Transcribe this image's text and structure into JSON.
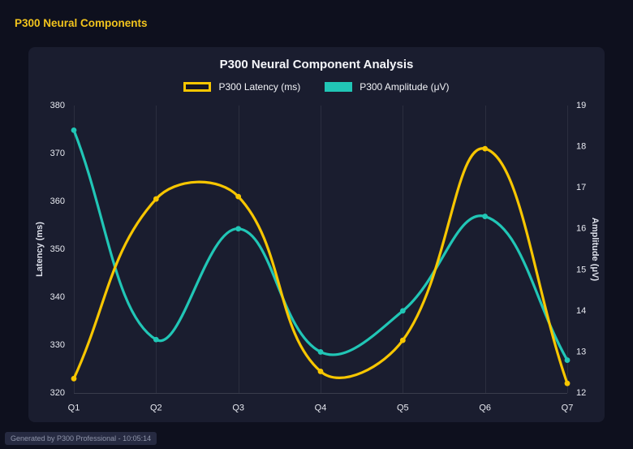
{
  "page": {
    "header_title": "P300 Neural Components",
    "footer": "Generated by P300 Professional - 10:05:14"
  },
  "chart_data": {
    "type": "line",
    "title": "P300 Neural Component Analysis",
    "categories": [
      "Q1",
      "Q2",
      "Q3",
      "Q4",
      "Q5",
      "Q6",
      "Q7"
    ],
    "series": [
      {
        "name": "P300 Latency (ms)",
        "axis": "left",
        "color": "#f7c600",
        "legend": "outline",
        "values": [
          323,
          360.5,
          361,
          324.5,
          331,
          371,
          322
        ]
      },
      {
        "name": "P300 Amplitude (μV)",
        "axis": "right",
        "color": "#21c6b6",
        "legend": "solid",
        "values": [
          18.4,
          13.3,
          16.0,
          13.0,
          14.0,
          16.3,
          12.8
        ]
      }
    ],
    "y_left": {
      "label": "Latency (ms)",
      "min": 320,
      "max": 380,
      "step": 10
    },
    "y_right": {
      "label": "Amplitude (μV)",
      "min": 12,
      "max": 19,
      "step": 1
    },
    "grid": "vertical",
    "legend_position": "top",
    "colors": {
      "page_bg": "#0e101e",
      "panel_bg": "#1a1d2f",
      "grid": "rgba(255,255,255,0.08)",
      "tick_text": "#e7e9f0",
      "axis_title_text": "#dde0ea",
      "title_text": "#f5f6fa",
      "header_accent": "#f2c41d"
    }
  }
}
